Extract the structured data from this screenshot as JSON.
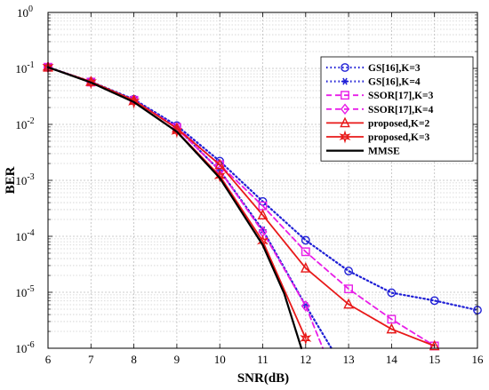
{
  "chart_data": {
    "type": "line",
    "xlabel": "SNR(dB)",
    "ylabel": "BER",
    "xlim": [
      6,
      16
    ],
    "ylim": [
      1e-06,
      1
    ],
    "yscale": "log",
    "grid": true,
    "legend_position": "top-right",
    "x_ticks": [
      "6",
      "7",
      "8",
      "9",
      "10",
      "11",
      "12",
      "13",
      "14",
      "15",
      "16"
    ],
    "y_ticks": [
      {
        "base": "10",
        "exp": "0"
      },
      {
        "base": "10",
        "exp": "-1"
      },
      {
        "base": "10",
        "exp": "-2"
      },
      {
        "base": "10",
        "exp": "-3"
      },
      {
        "base": "10",
        "exp": "-4"
      },
      {
        "base": "10",
        "exp": "-5"
      },
      {
        "base": "10",
        "exp": "-6"
      }
    ],
    "series": [
      {
        "name": "GS[16],K=3",
        "color": "#1f1fd6",
        "dash": "dot",
        "marker": "circle",
        "x": [
          6,
          7,
          8,
          9,
          10,
          11,
          12,
          13,
          14,
          15,
          16
        ],
        "y": [
          0.105,
          0.058,
          0.028,
          0.0095,
          0.0022,
          0.00042,
          8.5e-05,
          2.4e-05,
          9.8e-06,
          7.1e-06,
          4.8e-06
        ]
      },
      {
        "name": "GS[16],K=4",
        "color": "#1f1fd6",
        "dash": "dot",
        "marker": "asterisk",
        "x": [
          6,
          7,
          8,
          9,
          10,
          11,
          12,
          12.6
        ],
        "y": [
          0.105,
          0.057,
          0.027,
          0.0086,
          0.0015,
          0.00013,
          5.8e-06,
          1e-06
        ]
      },
      {
        "name": "SSOR[17],K=3",
        "color": "#e81ee8",
        "dash": "dash",
        "marker": "square",
        "x": [
          6,
          7,
          8,
          9,
          10,
          11,
          12,
          13,
          14,
          15
        ],
        "y": [
          0.105,
          0.057,
          0.027,
          0.0088,
          0.0019,
          0.00035,
          5.3e-05,
          1.15e-05,
          3.3e-06,
          1.1e-06
        ]
      },
      {
        "name": "SSOR[17],K=4",
        "color": "#e81ee8",
        "dash": "dash",
        "marker": "diamond",
        "x": [
          6,
          7,
          8,
          9,
          10,
          11,
          12,
          12.4
        ],
        "y": [
          0.105,
          0.057,
          0.027,
          0.0085,
          0.0015,
          0.00012,
          5.7e-06,
          1e-06
        ]
      },
      {
        "name": "proposed,K=2",
        "color": "#e81818",
        "dash": "solid",
        "marker": "triangle",
        "x": [
          6,
          7,
          8,
          9,
          10,
          11,
          12,
          13,
          14,
          15
        ],
        "y": [
          0.105,
          0.058,
          0.027,
          0.0085,
          0.0019,
          0.00024,
          2.7e-05,
          6.1e-06,
          2.2e-06,
          1.1e-06
        ]
      },
      {
        "name": "proposed,K=3",
        "color": "#e81818",
        "dash": "solid",
        "marker": "hexstar",
        "x": [
          6,
          7,
          8,
          9,
          10,
          11,
          12
        ],
        "y": [
          0.105,
          0.056,
          0.025,
          0.0075,
          0.0012,
          8.2e-05,
          1.5e-06
        ]
      },
      {
        "name": "MMSE",
        "color": "#000000",
        "dash": "solid",
        "marker": "none",
        "x": [
          6,
          7,
          8,
          9,
          10,
          11,
          11.5,
          11.9
        ],
        "y": [
          0.105,
          0.056,
          0.025,
          0.0074,
          0.0011,
          7e-05,
          9.5e-06,
          1e-06
        ]
      }
    ]
  }
}
